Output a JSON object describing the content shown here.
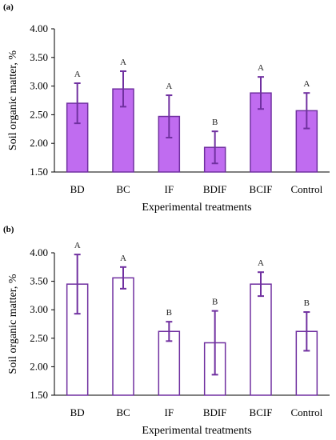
{
  "colors": {
    "fill_a": "#c06cf0",
    "stroke": "#7030a0",
    "fill_b": "#ffffff",
    "axis": "#000000"
  },
  "chart_data": [
    {
      "panel_label": "(a)",
      "type": "bar",
      "categories": [
        "BD",
        "BC",
        "IF",
        "BDIF",
        "BCIF",
        "Control"
      ],
      "values": [
        2.7,
        2.95,
        2.47,
        1.93,
        2.88,
        2.57
      ],
      "errors": [
        0.35,
        0.31,
        0.37,
        0.28,
        0.28,
        0.31
      ],
      "significance": [
        "A",
        "A",
        "A",
        "B",
        "A",
        "A"
      ],
      "xlabel": "Experimental treatments",
      "ylabel": "Soil organic matter, %",
      "ylim": [
        1.5,
        4.0
      ],
      "yticks": [
        "1.50",
        "2.00",
        "2.50",
        "3.00",
        "3.50",
        "4.00"
      ],
      "grid": false,
      "fill": "#c06cf0"
    },
    {
      "panel_label": "(b)",
      "type": "bar",
      "categories": [
        "BD",
        "BC",
        "IF",
        "BDIF",
        "BCIF",
        "Control"
      ],
      "values": [
        3.45,
        3.56,
        2.62,
        2.42,
        3.45,
        2.62
      ],
      "errors": [
        0.52,
        0.19,
        0.17,
        0.56,
        0.21,
        0.34
      ],
      "significance": [
        "A",
        "A",
        "B",
        "B",
        "A",
        "B"
      ],
      "xlabel": "Experimental treatments",
      "ylabel": "Soil organic matter, %",
      "ylim": [
        1.5,
        4.0
      ],
      "yticks": [
        "1.50",
        "2.00",
        "2.50",
        "3.00",
        "3.50",
        "4.00"
      ],
      "grid": false,
      "fill": "#ffffff"
    }
  ]
}
